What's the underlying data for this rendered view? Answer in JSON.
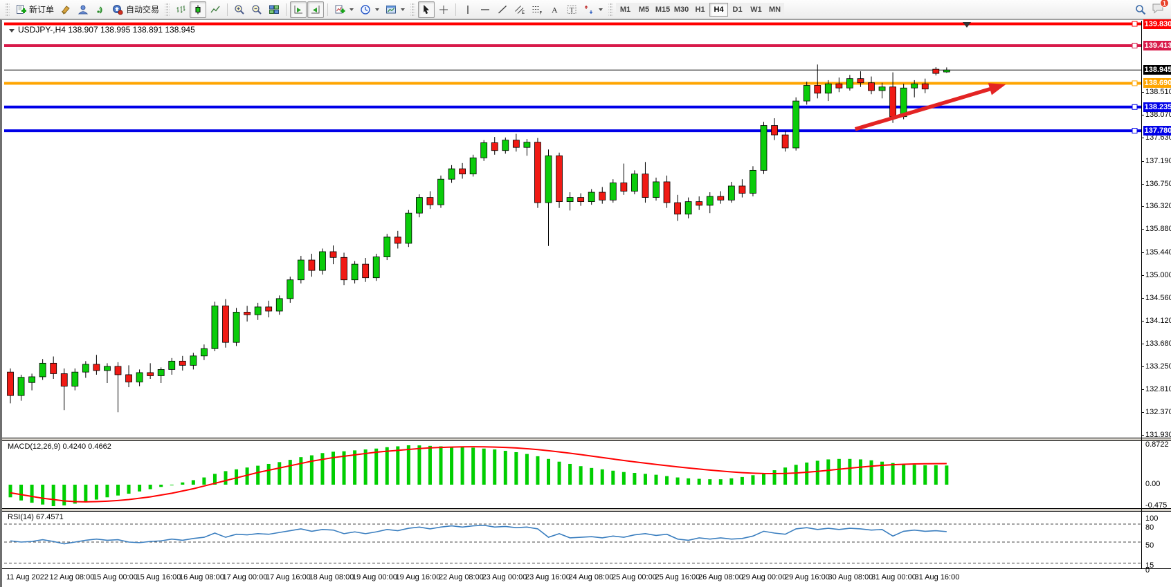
{
  "toolbar": {
    "new_order_label": "新订单",
    "auto_trading_label": "自动交易",
    "timeframes": [
      "M1",
      "M5",
      "M15",
      "M30",
      "H1",
      "H4",
      "D1",
      "W1",
      "MN"
    ],
    "selected_timeframe": "H4",
    "notification_count": "1"
  },
  "chart": {
    "title_text": "USDJPY-,H4  138.907 138.995 138.891 138.945",
    "symbol": "USDJPY-",
    "period": "H4",
    "open": "138.907",
    "high": "138.995",
    "low": "138.891",
    "close": "138.945"
  },
  "indicators_labels": {
    "macd": "MACD(12,26,9) 0.4240 0.4662",
    "rsi": "RSI(14) 67.4571"
  },
  "chart_data": {
    "type": "candlestick",
    "symbol": "USDJPY-",
    "timeframe": "H4",
    "title": "USDJPY-,H4  138.907 138.995 138.891 138.945",
    "colors": {
      "up": "#0ACC0A",
      "down": "#F01A14",
      "wick": "#000000",
      "macd_hist": "#00CE00",
      "macd_signal": "#FF0000",
      "rsi_line": "#3A7EBF",
      "arrow": "#E32424"
    },
    "levels": [
      {
        "price": 139.83,
        "label": "139.830",
        "color": "#FF0000"
      },
      {
        "price": 139.413,
        "label": "139.413",
        "color": "#D81A4A"
      },
      {
        "price": 138.69,
        "label": "138.690",
        "color": "#FFA500"
      },
      {
        "price": 138.235,
        "label": "138.235",
        "color": "#0000E8"
      },
      {
        "price": 137.78,
        "label": "137.780",
        "color": "#0000E8"
      }
    ],
    "current_price": {
      "value": 138.945,
      "label": "138.945",
      "color": "#000000"
    },
    "y_ticks": [
      "138.510",
      "138.070",
      "137.630",
      "137.190",
      "136.750",
      "136.320",
      "135.880",
      "135.440",
      "135.000",
      "134.560",
      "134.120",
      "133.680",
      "133.250",
      "132.810",
      "132.370",
      "131.930"
    ],
    "x_labels": [
      "11 Aug 2022",
      "12 Aug 08:00",
      "15 Aug 00:00",
      "15 Aug 16:00",
      "16 Aug 08:00",
      "17 Aug 00:00",
      "17 Aug 16:00",
      "18 Aug 08:00",
      "19 Aug 00:00",
      "19 Aug 16:00",
      "22 Aug 08:00",
      "23 Aug 00:00",
      "23 Aug 16:00",
      "24 Aug 08:00",
      "25 Aug 00:00",
      "25 Aug 16:00",
      "26 Aug 08:00",
      "29 Aug 00:00",
      "29 Aug 16:00",
      "30 Aug 08:00",
      "31 Aug 00:00",
      "31 Aug 16:00"
    ],
    "candles": [
      [
        133.15,
        133.22,
        132.55,
        132.7
      ],
      [
        132.7,
        133.1,
        132.6,
        133.05
      ],
      [
        132.95,
        133.12,
        132.8,
        133.06
      ],
      [
        133.06,
        133.4,
        133.0,
        133.32
      ],
      [
        133.32,
        133.45,
        133.02,
        133.12
      ],
      [
        133.12,
        133.22,
        132.42,
        132.88
      ],
      [
        132.88,
        133.22,
        132.8,
        133.15
      ],
      [
        133.15,
        133.36,
        133.04,
        133.3
      ],
      [
        133.3,
        133.48,
        133.1,
        133.18
      ],
      [
        133.18,
        133.32,
        132.94,
        133.26
      ],
      [
        133.26,
        133.34,
        132.38,
        133.1
      ],
      [
        133.1,
        133.28,
        132.86,
        132.96
      ],
      [
        132.96,
        133.2,
        132.88,
        133.14
      ],
      [
        133.14,
        133.32,
        133.02,
        133.08
      ],
      [
        133.08,
        133.24,
        132.94,
        133.2
      ],
      [
        133.2,
        133.42,
        133.1,
        133.36
      ],
      [
        133.36,
        133.46,
        133.18,
        133.28
      ],
      [
        133.28,
        133.52,
        133.2,
        133.46
      ],
      [
        133.46,
        133.68,
        133.38,
        133.6
      ],
      [
        133.6,
        134.5,
        133.55,
        134.42
      ],
      [
        134.42,
        134.55,
        133.62,
        133.72
      ],
      [
        133.72,
        134.38,
        133.65,
        134.3
      ],
      [
        134.3,
        134.42,
        134.12,
        134.25
      ],
      [
        134.25,
        134.48,
        134.15,
        134.4
      ],
      [
        134.4,
        134.52,
        134.2,
        134.32
      ],
      [
        134.32,
        134.62,
        134.25,
        134.56
      ],
      [
        134.56,
        134.98,
        134.48,
        134.92
      ],
      [
        134.92,
        135.38,
        134.85,
        135.3
      ],
      [
        135.3,
        135.42,
        134.98,
        135.1
      ],
      [
        135.1,
        135.52,
        135.02,
        135.46
      ],
      [
        135.46,
        135.58,
        135.22,
        135.35
      ],
      [
        135.35,
        135.44,
        134.82,
        134.92
      ],
      [
        134.92,
        135.28,
        134.85,
        135.22
      ],
      [
        135.22,
        135.34,
        134.88,
        134.96
      ],
      [
        134.96,
        135.42,
        134.9,
        135.36
      ],
      [
        135.36,
        135.8,
        135.3,
        135.74
      ],
      [
        135.74,
        135.86,
        135.52,
        135.62
      ],
      [
        135.62,
        136.26,
        135.55,
        136.2
      ],
      [
        136.2,
        136.56,
        136.12,
        136.5
      ],
      [
        136.5,
        136.62,
        136.28,
        136.36
      ],
      [
        136.36,
        136.92,
        136.3,
        136.85
      ],
      [
        136.85,
        137.12,
        136.78,
        137.05
      ],
      [
        137.05,
        137.16,
        136.86,
        136.95
      ],
      [
        136.95,
        137.32,
        136.9,
        137.26
      ],
      [
        137.26,
        137.6,
        137.2,
        137.55
      ],
      [
        137.55,
        137.66,
        137.32,
        137.4
      ],
      [
        137.4,
        137.65,
        137.34,
        137.6
      ],
      [
        137.6,
        137.72,
        137.38,
        137.46
      ],
      [
        137.46,
        137.62,
        137.3,
        137.56
      ],
      [
        137.56,
        137.64,
        136.3,
        136.4
      ],
      [
        136.4,
        137.42,
        135.57,
        137.3
      ],
      [
        137.3,
        137.36,
        136.3,
        136.42
      ],
      [
        136.42,
        136.6,
        136.25,
        136.5
      ],
      [
        136.5,
        136.58,
        136.34,
        136.42
      ],
      [
        136.42,
        136.66,
        136.36,
        136.6
      ],
      [
        136.6,
        136.7,
        136.38,
        136.45
      ],
      [
        136.45,
        136.85,
        136.4,
        136.78
      ],
      [
        136.78,
        137.15,
        136.55,
        136.62
      ],
      [
        136.62,
        137.02,
        136.56,
        136.95
      ],
      [
        136.95,
        137.18,
        136.4,
        136.5
      ],
      [
        136.5,
        136.88,
        136.44,
        136.8
      ],
      [
        136.8,
        136.92,
        136.3,
        136.4
      ],
      [
        136.4,
        136.55,
        136.05,
        136.18
      ],
      [
        136.18,
        136.5,
        136.1,
        136.42
      ],
      [
        136.42,
        136.52,
        136.26,
        136.35
      ],
      [
        136.35,
        136.6,
        136.2,
        136.52
      ],
      [
        136.52,
        136.62,
        136.38,
        136.45
      ],
      [
        136.45,
        136.8,
        136.4,
        136.72
      ],
      [
        136.72,
        136.85,
        136.5,
        136.58
      ],
      [
        136.58,
        137.1,
        136.52,
        137.02
      ],
      [
        137.02,
        137.95,
        136.95,
        137.88
      ],
      [
        137.88,
        138.02,
        137.6,
        137.7
      ],
      [
        137.7,
        137.78,
        137.38,
        137.45
      ],
      [
        137.45,
        138.42,
        137.4,
        138.35
      ],
      [
        138.35,
        138.72,
        138.28,
        138.65
      ],
      [
        138.65,
        139.05,
        138.4,
        138.5
      ],
      [
        138.5,
        138.75,
        138.35,
        138.68
      ],
      [
        138.68,
        138.8,
        138.52,
        138.6
      ],
      [
        138.6,
        138.85,
        138.55,
        138.78
      ],
      [
        138.78,
        138.92,
        138.62,
        138.7
      ],
      [
        138.7,
        138.82,
        138.48,
        138.55
      ],
      [
        138.55,
        138.7,
        138.4,
        138.62
      ],
      [
        138.62,
        138.9,
        137.93,
        138.05
      ],
      [
        138.05,
        138.68,
        138.0,
        138.6
      ],
      [
        138.6,
        138.75,
        138.42,
        138.68
      ],
      [
        138.68,
        138.78,
        138.5,
        138.58
      ],
      [
        138.96,
        139.0,
        138.84,
        138.88
      ],
      [
        138.907,
        138.995,
        138.891,
        138.945
      ]
    ],
    "macd": {
      "name": "MACD",
      "params": "12,26,9",
      "value": 0.424,
      "signal_value": 0.4662,
      "scale_labels": [
        "0.8722",
        "0.00",
        "-0.475"
      ],
      "scale": {
        "max": 0.8722,
        "zero": 0.0,
        "min": -0.475
      },
      "histogram": [
        -0.28,
        -0.35,
        -0.4,
        -0.44,
        -0.475,
        -0.46,
        -0.42,
        -0.38,
        -0.33,
        -0.28,
        -0.24,
        -0.2,
        -0.15,
        -0.1,
        -0.05,
        0.0,
        0.05,
        0.1,
        0.16,
        0.24,
        0.3,
        0.34,
        0.38,
        0.42,
        0.46,
        0.5,
        0.55,
        0.61,
        0.65,
        0.7,
        0.73,
        0.74,
        0.76,
        0.78,
        0.8,
        0.83,
        0.85,
        0.8722,
        0.87,
        0.86,
        0.85,
        0.84,
        0.83,
        0.82,
        0.8,
        0.78,
        0.75,
        0.72,
        0.68,
        0.63,
        0.57,
        0.51,
        0.46,
        0.41,
        0.37,
        0.34,
        0.31,
        0.28,
        0.26,
        0.24,
        0.22,
        0.19,
        0.16,
        0.14,
        0.13,
        0.12,
        0.12,
        0.14,
        0.17,
        0.21,
        0.26,
        0.32,
        0.38,
        0.44,
        0.49,
        0.53,
        0.56,
        0.57,
        0.57,
        0.56,
        0.54,
        0.51,
        0.48,
        0.45,
        0.44,
        0.43,
        0.43,
        0.424
      ],
      "signal": [
        -0.18,
        -0.22,
        -0.26,
        -0.3,
        -0.33,
        -0.36,
        -0.375,
        -0.38,
        -0.375,
        -0.365,
        -0.35,
        -0.33,
        -0.3,
        -0.27,
        -0.23,
        -0.19,
        -0.14,
        -0.09,
        -0.03,
        0.03,
        0.09,
        0.15,
        0.21,
        0.27,
        0.32,
        0.37,
        0.42,
        0.47,
        0.52,
        0.56,
        0.6,
        0.63,
        0.66,
        0.69,
        0.72,
        0.74,
        0.76,
        0.78,
        0.8,
        0.815,
        0.825,
        0.833,
        0.838,
        0.84,
        0.838,
        0.833,
        0.825,
        0.813,
        0.797,
        0.777,
        0.753,
        0.726,
        0.697,
        0.666,
        0.634,
        0.601,
        0.568,
        0.536,
        0.505,
        0.476,
        0.448,
        0.421,
        0.395,
        0.37,
        0.346,
        0.323,
        0.302,
        0.283,
        0.267,
        0.255,
        0.247,
        0.245,
        0.249,
        0.259,
        0.275,
        0.295,
        0.318,
        0.342,
        0.366,
        0.389,
        0.41,
        0.428,
        0.442,
        0.452,
        0.459,
        0.463,
        0.465,
        0.4662
      ]
    },
    "rsi": {
      "name": "RSI",
      "params": "14",
      "value": 67.4571,
      "scale_labels": [
        "100",
        "80",
        "50",
        "15",
        "0"
      ],
      "level_lines": [
        80,
        50,
        15
      ],
      "values": [
        52,
        50,
        51,
        54,
        51,
        47,
        50,
        53,
        55,
        53,
        54,
        50,
        49,
        51,
        52,
        55,
        53,
        56,
        58,
        65,
        58,
        63,
        62,
        64,
        63,
        66,
        69,
        72,
        68,
        71,
        70,
        64,
        67,
        64,
        67,
        71,
        69,
        73,
        75,
        72,
        75,
        77,
        75,
        77,
        78,
        75,
        76,
        74,
        75,
        72,
        58,
        64,
        57,
        58,
        59,
        57,
        60,
        58,
        62,
        64,
        61,
        63,
        55,
        53,
        57,
        55,
        57,
        55,
        56,
        60,
        68,
        65,
        63,
        72,
        74,
        71,
        73,
        71,
        73,
        72,
        70,
        71,
        60,
        68,
        70,
        68,
        69,
        67.46
      ]
    },
    "annotation_arrow": {
      "from_bar": 78.5,
      "from_price": 137.81,
      "to_bar": 92.5,
      "to_price": 138.67,
      "color": "#E32424"
    },
    "chart_shift_marker_x": 1394
  }
}
